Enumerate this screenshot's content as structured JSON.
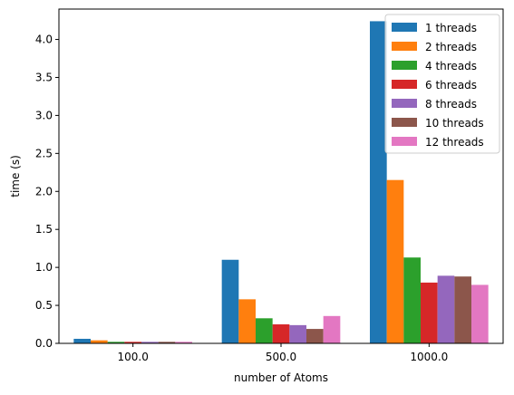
{
  "chart_data": {
    "type": "bar",
    "categories": [
      "100.0",
      "500.0",
      "1000.0"
    ],
    "series": [
      {
        "name": "1 threads",
        "color": "#1f77b4",
        "values": [
          0.06,
          1.1,
          4.24
        ]
      },
      {
        "name": "2 threads",
        "color": "#ff7f0e",
        "values": [
          0.04,
          0.58,
          2.15
        ]
      },
      {
        "name": "4 threads",
        "color": "#2ca02c",
        "values": [
          0.02,
          0.33,
          1.13
        ]
      },
      {
        "name": "6 threads",
        "color": "#d62728",
        "values": [
          0.02,
          0.25,
          0.8
        ]
      },
      {
        "name": "8 threads",
        "color": "#9467bd",
        "values": [
          0.02,
          0.24,
          0.89
        ]
      },
      {
        "name": "10 threads",
        "color": "#8c564b",
        "values": [
          0.02,
          0.19,
          0.88
        ]
      },
      {
        "name": "12 threads",
        "color": "#e377c2",
        "values": [
          0.02,
          0.36,
          0.77
        ]
      }
    ],
    "xlabel": "number of Atoms",
    "ylabel": "time (s)",
    "ylim": [
      0,
      4.4
    ],
    "yticks": [
      0.0,
      0.5,
      1.0,
      1.5,
      2.0,
      2.5,
      3.0,
      3.5,
      4.0
    ],
    "ytick_labels": [
      "0.0",
      "0.5",
      "1.0",
      "1.5",
      "2.0",
      "2.5",
      "3.0",
      "3.5",
      "4.0"
    ],
    "grid": false,
    "legend": "top-right"
  }
}
